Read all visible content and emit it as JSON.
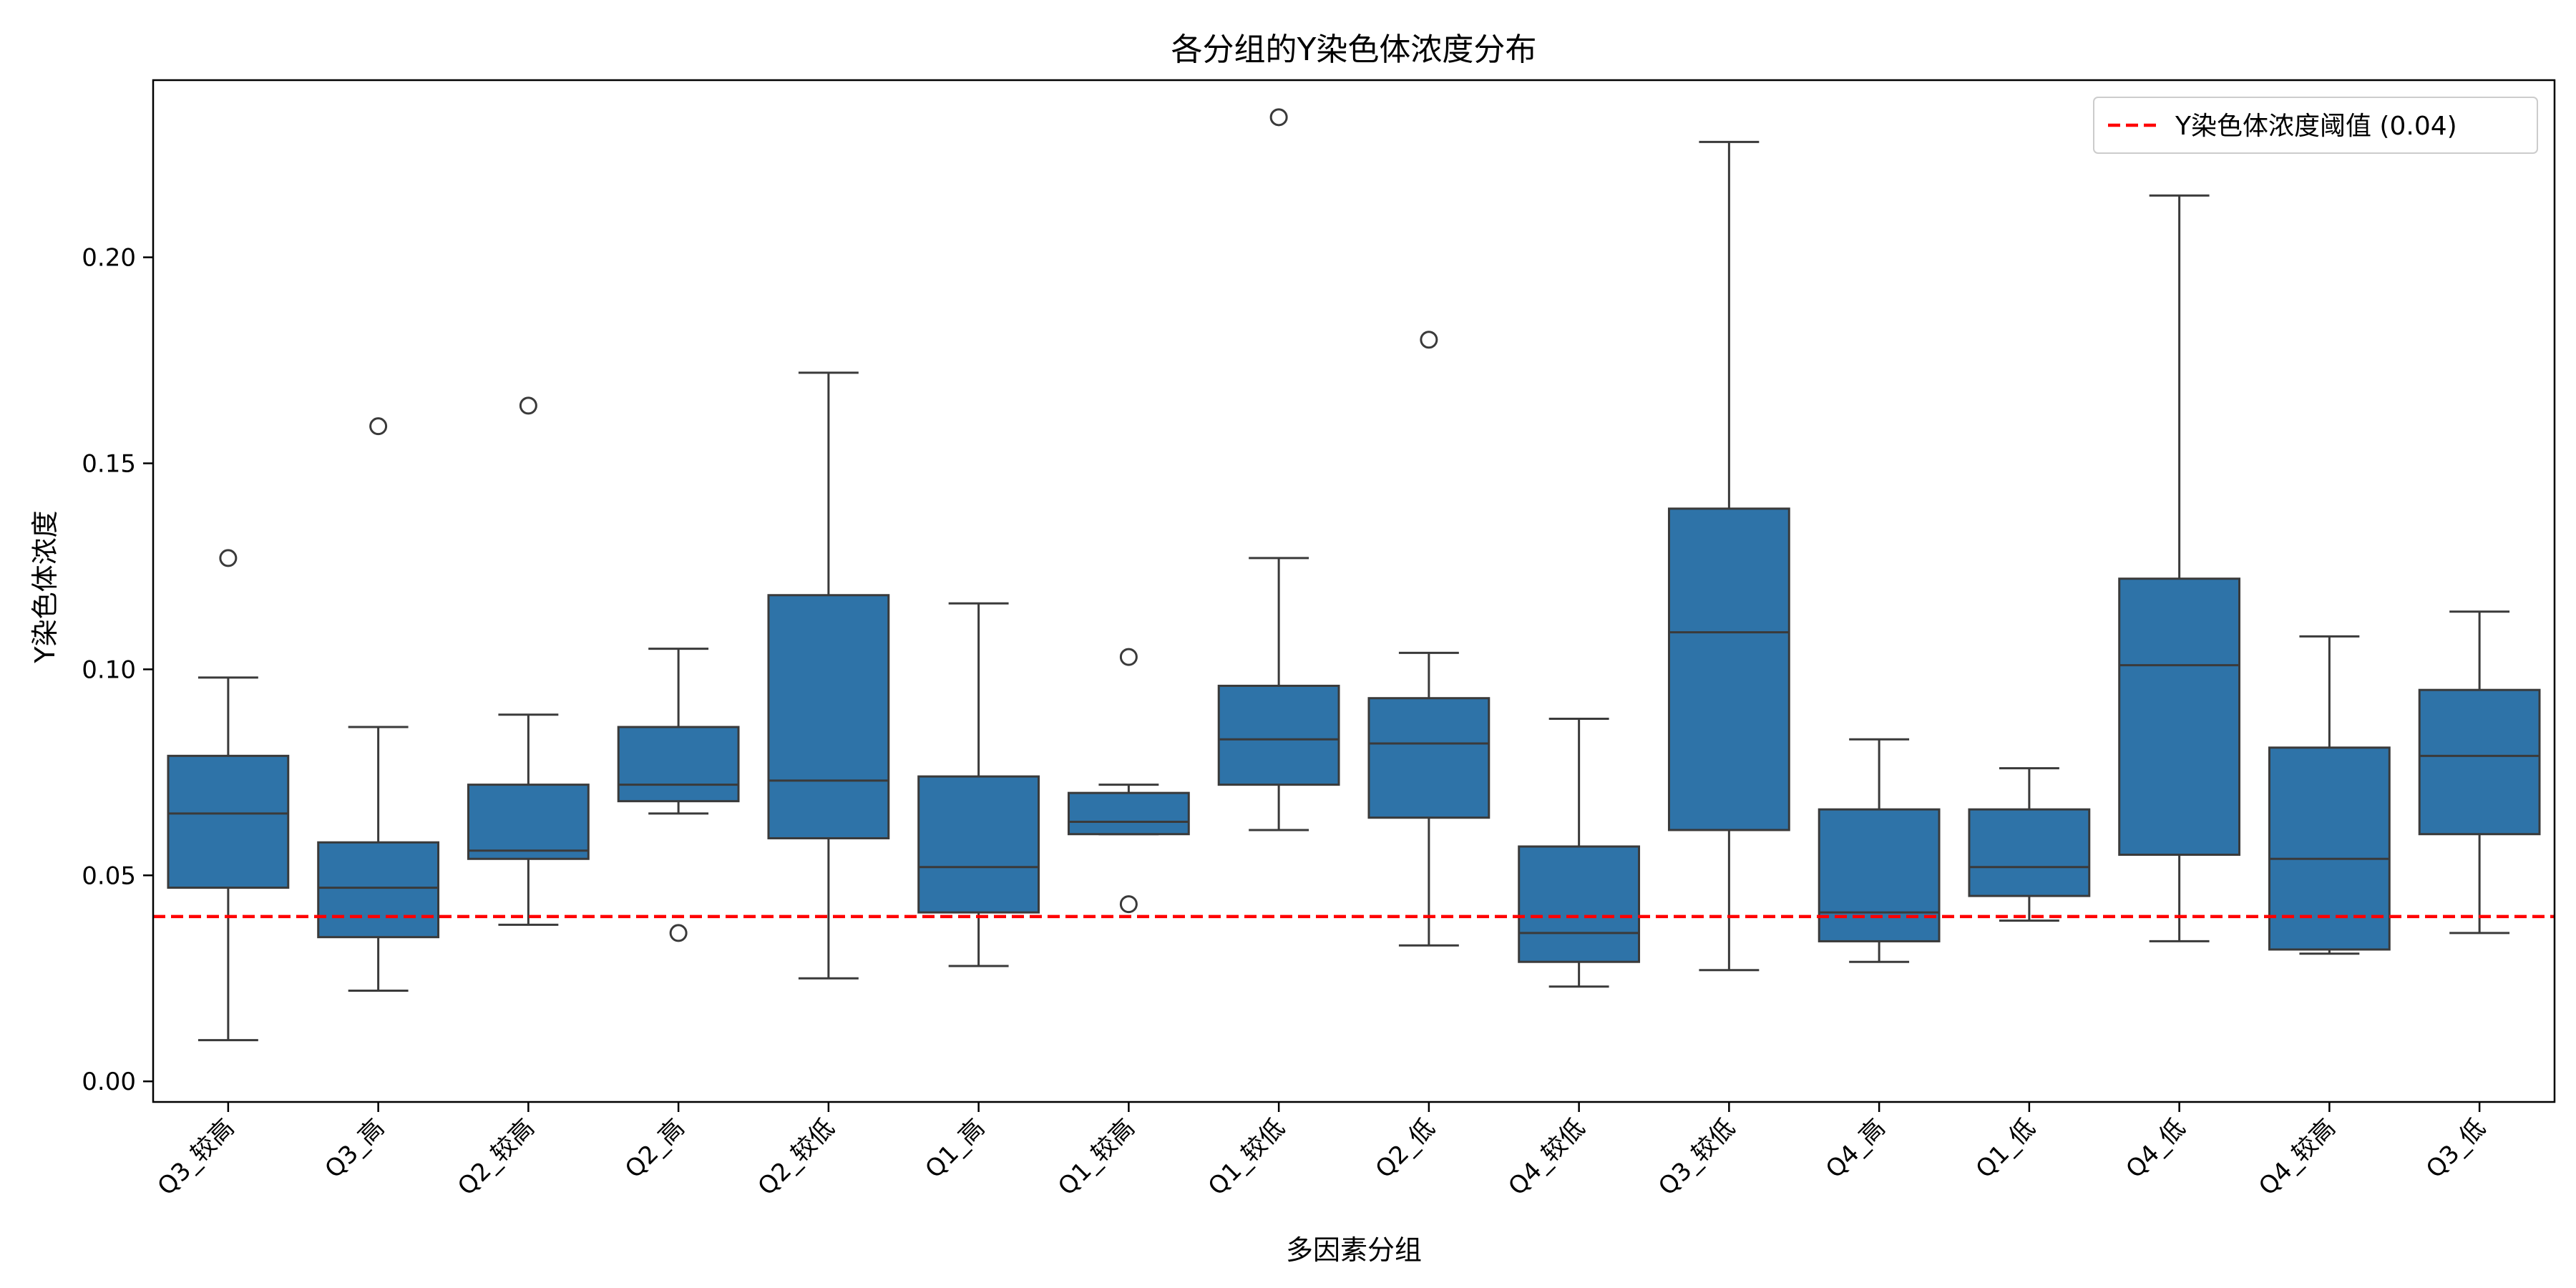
{
  "chart_data": {
    "type": "box",
    "title": "各分组的Y染色体浓度分布",
    "xlabel": "多因素分组",
    "ylabel": "Y染色体浓度",
    "ylim": [
      -0.005,
      0.243
    ],
    "yticks": [
      0.0,
      0.05,
      0.1,
      0.15,
      0.2
    ],
    "ytick_labels": [
      "0.00",
      "0.05",
      "0.10",
      "0.15",
      "0.20"
    ],
    "grid": false,
    "box_color": "#2e73a8",
    "line_color": "#3a3a3a",
    "groups": [
      {
        "label": "Q3_较高",
        "whisker_low": 0.01,
        "q1": 0.047,
        "median": 0.065,
        "q3": 0.079,
        "whisker_high": 0.098,
        "outliers": [
          0.127
        ]
      },
      {
        "label": "Q3_高",
        "whisker_low": 0.022,
        "q1": 0.035,
        "median": 0.047,
        "q3": 0.058,
        "whisker_high": 0.086,
        "outliers": [
          0.159
        ]
      },
      {
        "label": "Q2_较高",
        "whisker_low": 0.038,
        "q1": 0.054,
        "median": 0.056,
        "q3": 0.072,
        "whisker_high": 0.089,
        "outliers": [
          0.164
        ]
      },
      {
        "label": "Q2_高",
        "whisker_low": 0.065,
        "q1": 0.068,
        "median": 0.072,
        "q3": 0.086,
        "whisker_high": 0.105,
        "outliers": [
          0.036
        ]
      },
      {
        "label": "Q2_较低",
        "whisker_low": 0.025,
        "q1": 0.059,
        "median": 0.073,
        "q3": 0.118,
        "whisker_high": 0.172,
        "outliers": []
      },
      {
        "label": "Q1_高",
        "whisker_low": 0.028,
        "q1": 0.041,
        "median": 0.052,
        "q3": 0.074,
        "whisker_high": 0.116,
        "outliers": []
      },
      {
        "label": "Q1_较高",
        "whisker_low": 0.06,
        "q1": 0.06,
        "median": 0.063,
        "q3": 0.07,
        "whisker_high": 0.072,
        "outliers": [
          0.103,
          0.043
        ]
      },
      {
        "label": "Q1_较低",
        "whisker_low": 0.061,
        "q1": 0.072,
        "median": 0.083,
        "q3": 0.096,
        "whisker_high": 0.127,
        "outliers": [
          0.234
        ]
      },
      {
        "label": "Q2_低",
        "whisker_low": 0.033,
        "q1": 0.064,
        "median": 0.082,
        "q3": 0.093,
        "whisker_high": 0.104,
        "outliers": [
          0.18
        ]
      },
      {
        "label": "Q4_较低",
        "whisker_low": 0.023,
        "q1": 0.029,
        "median": 0.036,
        "q3": 0.057,
        "whisker_high": 0.088,
        "outliers": []
      },
      {
        "label": "Q3_较低",
        "whisker_low": 0.027,
        "q1": 0.061,
        "median": 0.109,
        "q3": 0.139,
        "whisker_high": 0.228,
        "outliers": []
      },
      {
        "label": "Q4_高",
        "whisker_low": 0.029,
        "q1": 0.034,
        "median": 0.041,
        "q3": 0.066,
        "whisker_high": 0.083,
        "outliers": []
      },
      {
        "label": "Q1_低",
        "whisker_low": 0.039,
        "q1": 0.045,
        "median": 0.052,
        "q3": 0.066,
        "whisker_high": 0.076,
        "outliers": []
      },
      {
        "label": "Q4_低",
        "whisker_low": 0.034,
        "q1": 0.055,
        "median": 0.101,
        "q3": 0.122,
        "whisker_high": 0.215,
        "outliers": []
      },
      {
        "label": "Q4_较高",
        "whisker_low": 0.031,
        "q1": 0.032,
        "median": 0.054,
        "q3": 0.081,
        "whisker_high": 0.108,
        "outliers": []
      },
      {
        "label": "Q3_低",
        "whisker_low": 0.036,
        "q1": 0.06,
        "median": 0.079,
        "q3": 0.095,
        "whisker_high": 0.114,
        "outliers": []
      }
    ],
    "threshold": {
      "value": 0.04,
      "label": "Y染色体浓度阈值 (0.04)",
      "color": "#ff0000",
      "style": "dashed"
    },
    "legend": {
      "position": "top-right"
    }
  }
}
